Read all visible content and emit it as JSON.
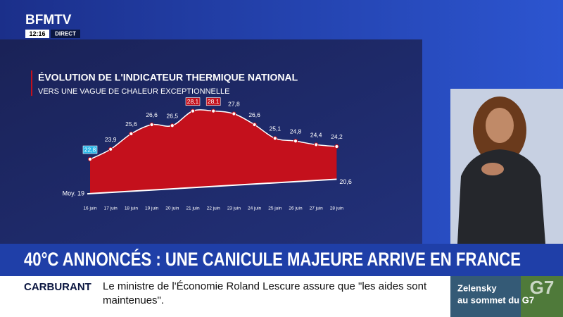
{
  "channel": {
    "logo": "BFMTV",
    "time": "12:16",
    "live": "DIRECT"
  },
  "chart_data": {
    "type": "area",
    "title": "ÉVOLUTION DE L'INDICATEUR THERMIQUE NATIONAL",
    "subtitle": "VERS UNE VAGUE DE CHALEUR EXCEPTIONNELLE",
    "categories": [
      "16 juin",
      "17 juin",
      "18 juin",
      "19 juin",
      "20 juin",
      "21 juin",
      "22 juin",
      "23 juin",
      "24 juin",
      "25 juin",
      "26 juin",
      "27 juin",
      "28 juin"
    ],
    "values": [
      22.8,
      23.9,
      25.6,
      26.6,
      26.5,
      28.1,
      28.1,
      27.8,
      26.6,
      25.1,
      24.8,
      24.4,
      24.2
    ],
    "value_labels": [
      "22,8",
      "23,9",
      "25,6",
      "26,6",
      "26,5",
      "28,1",
      "28,1",
      "27,8",
      "26,6",
      "25,1",
      "24,8",
      "24,4",
      "24,2"
    ],
    "color": "#c4101c",
    "normal": {
      "values": [
        19,
        20.6
      ],
      "value_labels": [
        "Moy. 19",
        "20,6"
      ]
    },
    "ylim": [
      18,
      29
    ]
  },
  "headline": "40°C ANNONCÉS : UNE CANICULE MAJEURE ARRIVE EN FRANCE",
  "ticker": {
    "tag": "CARBURANT",
    "text": "Le ministre de l'Économie Roland Lescure assure que \"les aides sont maintenues\"."
  },
  "side": {
    "line1": "Zelensky",
    "line2": "au sommet du G7",
    "logo": "G7"
  }
}
